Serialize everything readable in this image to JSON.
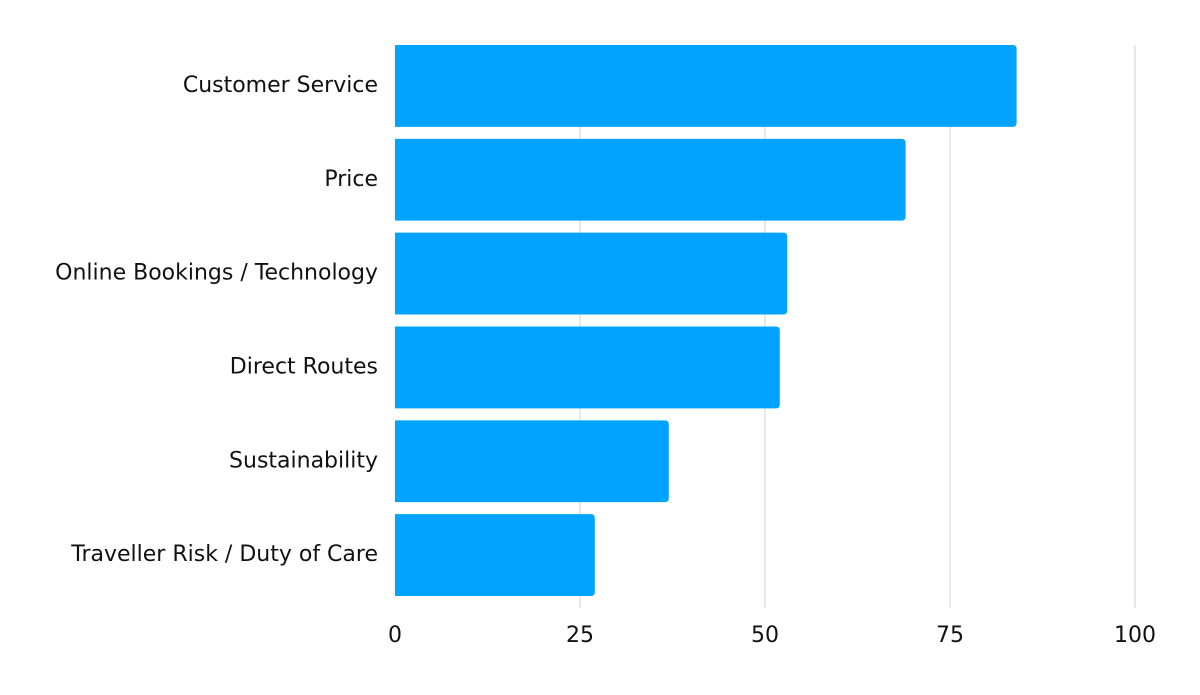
{
  "chart_data": {
    "type": "bar",
    "orientation": "horizontal",
    "categories": [
      "Customer Service",
      "Price",
      "Online Bookings / Technology",
      "Direct Routes",
      "Sustainability",
      "Traveller Risk / Duty of Care"
    ],
    "values": [
      84,
      69,
      53,
      52,
      37,
      27
    ],
    "xlim": [
      0,
      100
    ],
    "xticks": [
      0,
      25,
      50,
      75,
      100
    ],
    "xtick_labels": [
      "0",
      "25",
      "50",
      "75",
      "100"
    ],
    "title": "",
    "xlabel": "",
    "ylabel": "",
    "grid": "vertical",
    "legend": "none",
    "colors": {
      "bar": "#00a3ff",
      "grid": "#d0d0d0",
      "text": "#111111"
    }
  }
}
